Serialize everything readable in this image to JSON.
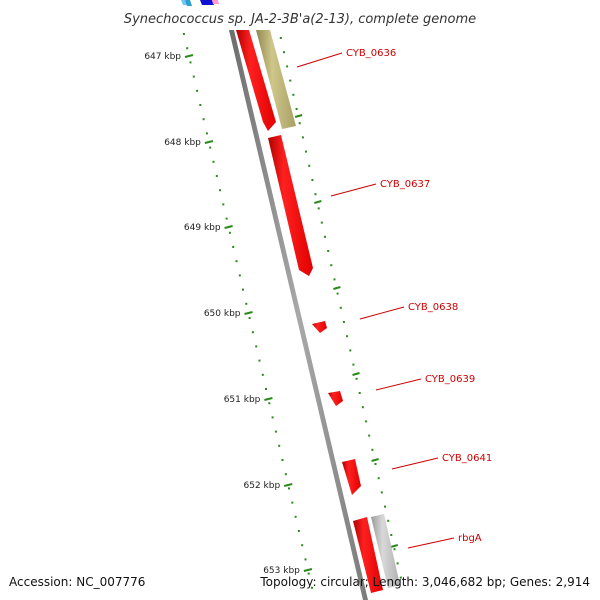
{
  "title": "Synechococcus sp. JA-2-3B'a(2-13), complete genome",
  "accession": "Accession: NC_007776",
  "summary": "Topology: circular; Length: 3,046,682 bp; Genes: 2,914",
  "kbp_labels": [
    "647 kbp",
    "648 kbp",
    "649 kbp",
    "650 kbp",
    "651 kbp",
    "652 kbp",
    "653 kbp"
  ],
  "genes": [
    {
      "name": "CYB_0636",
      "color": "#ff0000"
    },
    {
      "name": "CYB_0637",
      "color": "#ff0000"
    },
    {
      "name": "CYB_0638",
      "color": "#ff0000"
    },
    {
      "name": "CYB_0639",
      "color": "#ff0000"
    },
    {
      "name": "CYB_0641",
      "color": "#ff0000"
    },
    {
      "name": "rbgA",
      "color": "#ff0000"
    }
  ],
  "colors": {
    "gene_red": "#ff1010",
    "feature_olive": "#b9b070",
    "feature_gray": "#bdbdbd",
    "backbone": "#8c8c8c",
    "tick_green": "#2a8a1a",
    "label_red": "#cc0000"
  }
}
